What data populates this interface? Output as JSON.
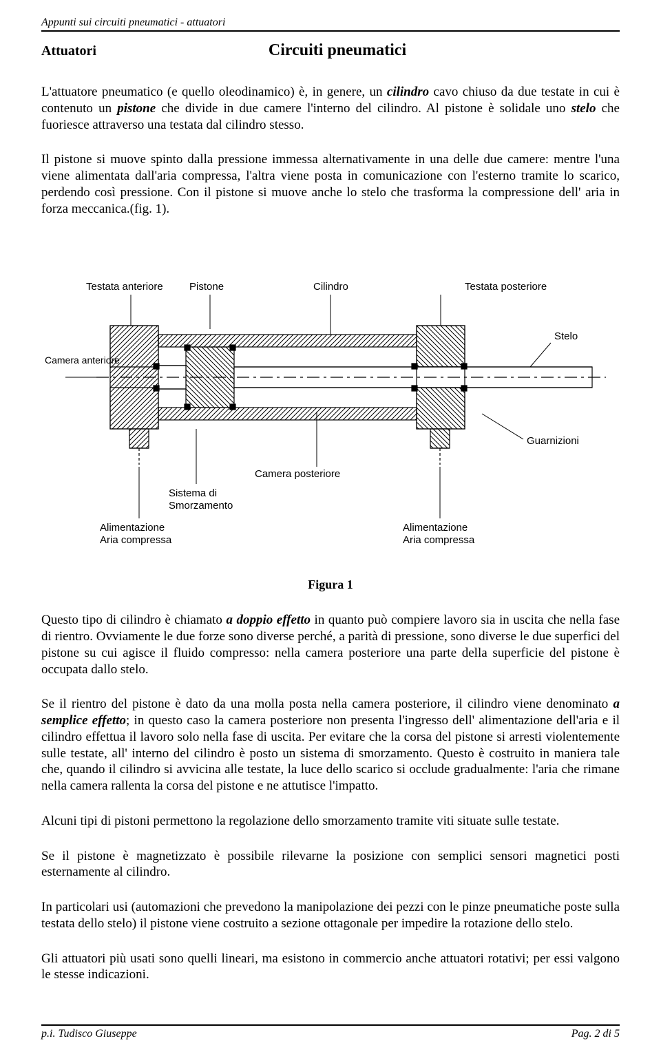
{
  "header": "Appunti sui circuiti pneumatici - attuatori",
  "section_label": "Attuatori",
  "title": "Circuiti pneumatici",
  "para1_parts": [
    {
      "t": "L'attuatore pneumatico (e quello oleodinamico) è, in genere, un "
    },
    {
      "t": "cilindro",
      "cls": "bi"
    },
    {
      "t": " cavo chiuso da due testate in cui è contenuto un "
    },
    {
      "t": "pistone",
      "cls": "bi"
    },
    {
      "t": " che divide in due camere l'interno del cilindro. Al pistone è solidale uno "
    },
    {
      "t": "stelo",
      "cls": "bi"
    },
    {
      "t": " che fuoriesce attraverso una testata dal cilindro stesso."
    }
  ],
  "para2": "Il pistone si muove spinto dalla pressione immessa alternativamente in una delle due camere: mentre l'una viene alimentata dall'aria compressa, l'altra viene posta in comunicazione con l'esterno tramite lo scarico, perdendo così pressione. Con il pistone si muove anche lo stelo che trasforma la compressione dell' aria in forza meccanica.(fig. 1).",
  "figure_caption": "Figura 1",
  "para3_parts": [
    {
      "t": "Questo tipo di cilindro è chiamato "
    },
    {
      "t": "a doppio effetto",
      "cls": "bi"
    },
    {
      "t": " in quanto può compiere lavoro sia in uscita che nella fase di rientro. Ovviamente le due forze sono diverse perché, a parità di pressione, sono diverse le due superfici del pistone su cui agisce il fluido compresso: nella camera posteriore una parte della superficie del pistone è occupata dallo stelo."
    }
  ],
  "para4_parts": [
    {
      "t": "Se il rientro del pistone è dato da una molla posta nella camera posteriore, il cilindro viene denominato "
    },
    {
      "t": "a semplice effetto",
      "cls": "bi"
    },
    {
      "t": "; in questo caso la camera posteriore non presenta l'ingresso dell' alimentazione dell'aria e il cilindro effettua il lavoro solo nella fase di uscita. Per evitare che la corsa del pistone si arresti violentemente sulle testate, all' interno del cilindro è posto un sistema di smorzamento. Questo è costruito in maniera tale che, quando il cilindro si avvicina alle testate, la luce dello scarico si occlude gradualmente: l'aria che rimane nella camera rallenta la corsa del pistone e ne attutisce l'impatto."
    }
  ],
  "para5": "Alcuni tipi di pistoni permettono la regolazione dello smorzamento tramite viti situate sulle testate.",
  "para6": "Se il pistone è magnetizzato è possibile rilevarne la posizione con semplici sensori magnetici posti esternamente al cilindro.",
  "para7": "In particolari usi (automazioni che prevedono la manipolazione dei pezzi con le pinze pneumatiche poste sulla testata dello stelo) il pistone viene costruito a sezione ottagonale per impedire la rotazione dello stelo.",
  "para8": "Gli attuatori più usati sono quelli lineari, ma esistono in commercio anche attuatori rotativi; per essi valgono le stesse indicazioni.",
  "footer_left": "p.i. Tudisco Giuseppe",
  "footer_right": "Pag. 2 di 5",
  "diagram": {
    "type": "technical-drawing",
    "background": "#ffffff",
    "stroke": "#000000",
    "stroke_width": 1,
    "hatch_color": "#000000",
    "labels": {
      "testata_anteriore": "Testata anteriore",
      "pistone": "Pistone",
      "cilindro": "Cilindro",
      "testata_posteriore": "Testata posteriore",
      "stelo": "Stelo",
      "camera_anteriore": "Camera anteriore",
      "guarnizioni": "Guarnizioni",
      "camera_posteriore": "Camera posteriore",
      "sistema_smorzamento_l1": "Sistema di",
      "sistema_smorzamento_l2": "Smorzamento",
      "alimentazione_l1": "Alimentazione",
      "alimentazione_l2": "Aria compressa",
      "alimentazione2_l1": "Alimentazione",
      "alimentazione2_l2": "Aria compressa"
    }
  }
}
